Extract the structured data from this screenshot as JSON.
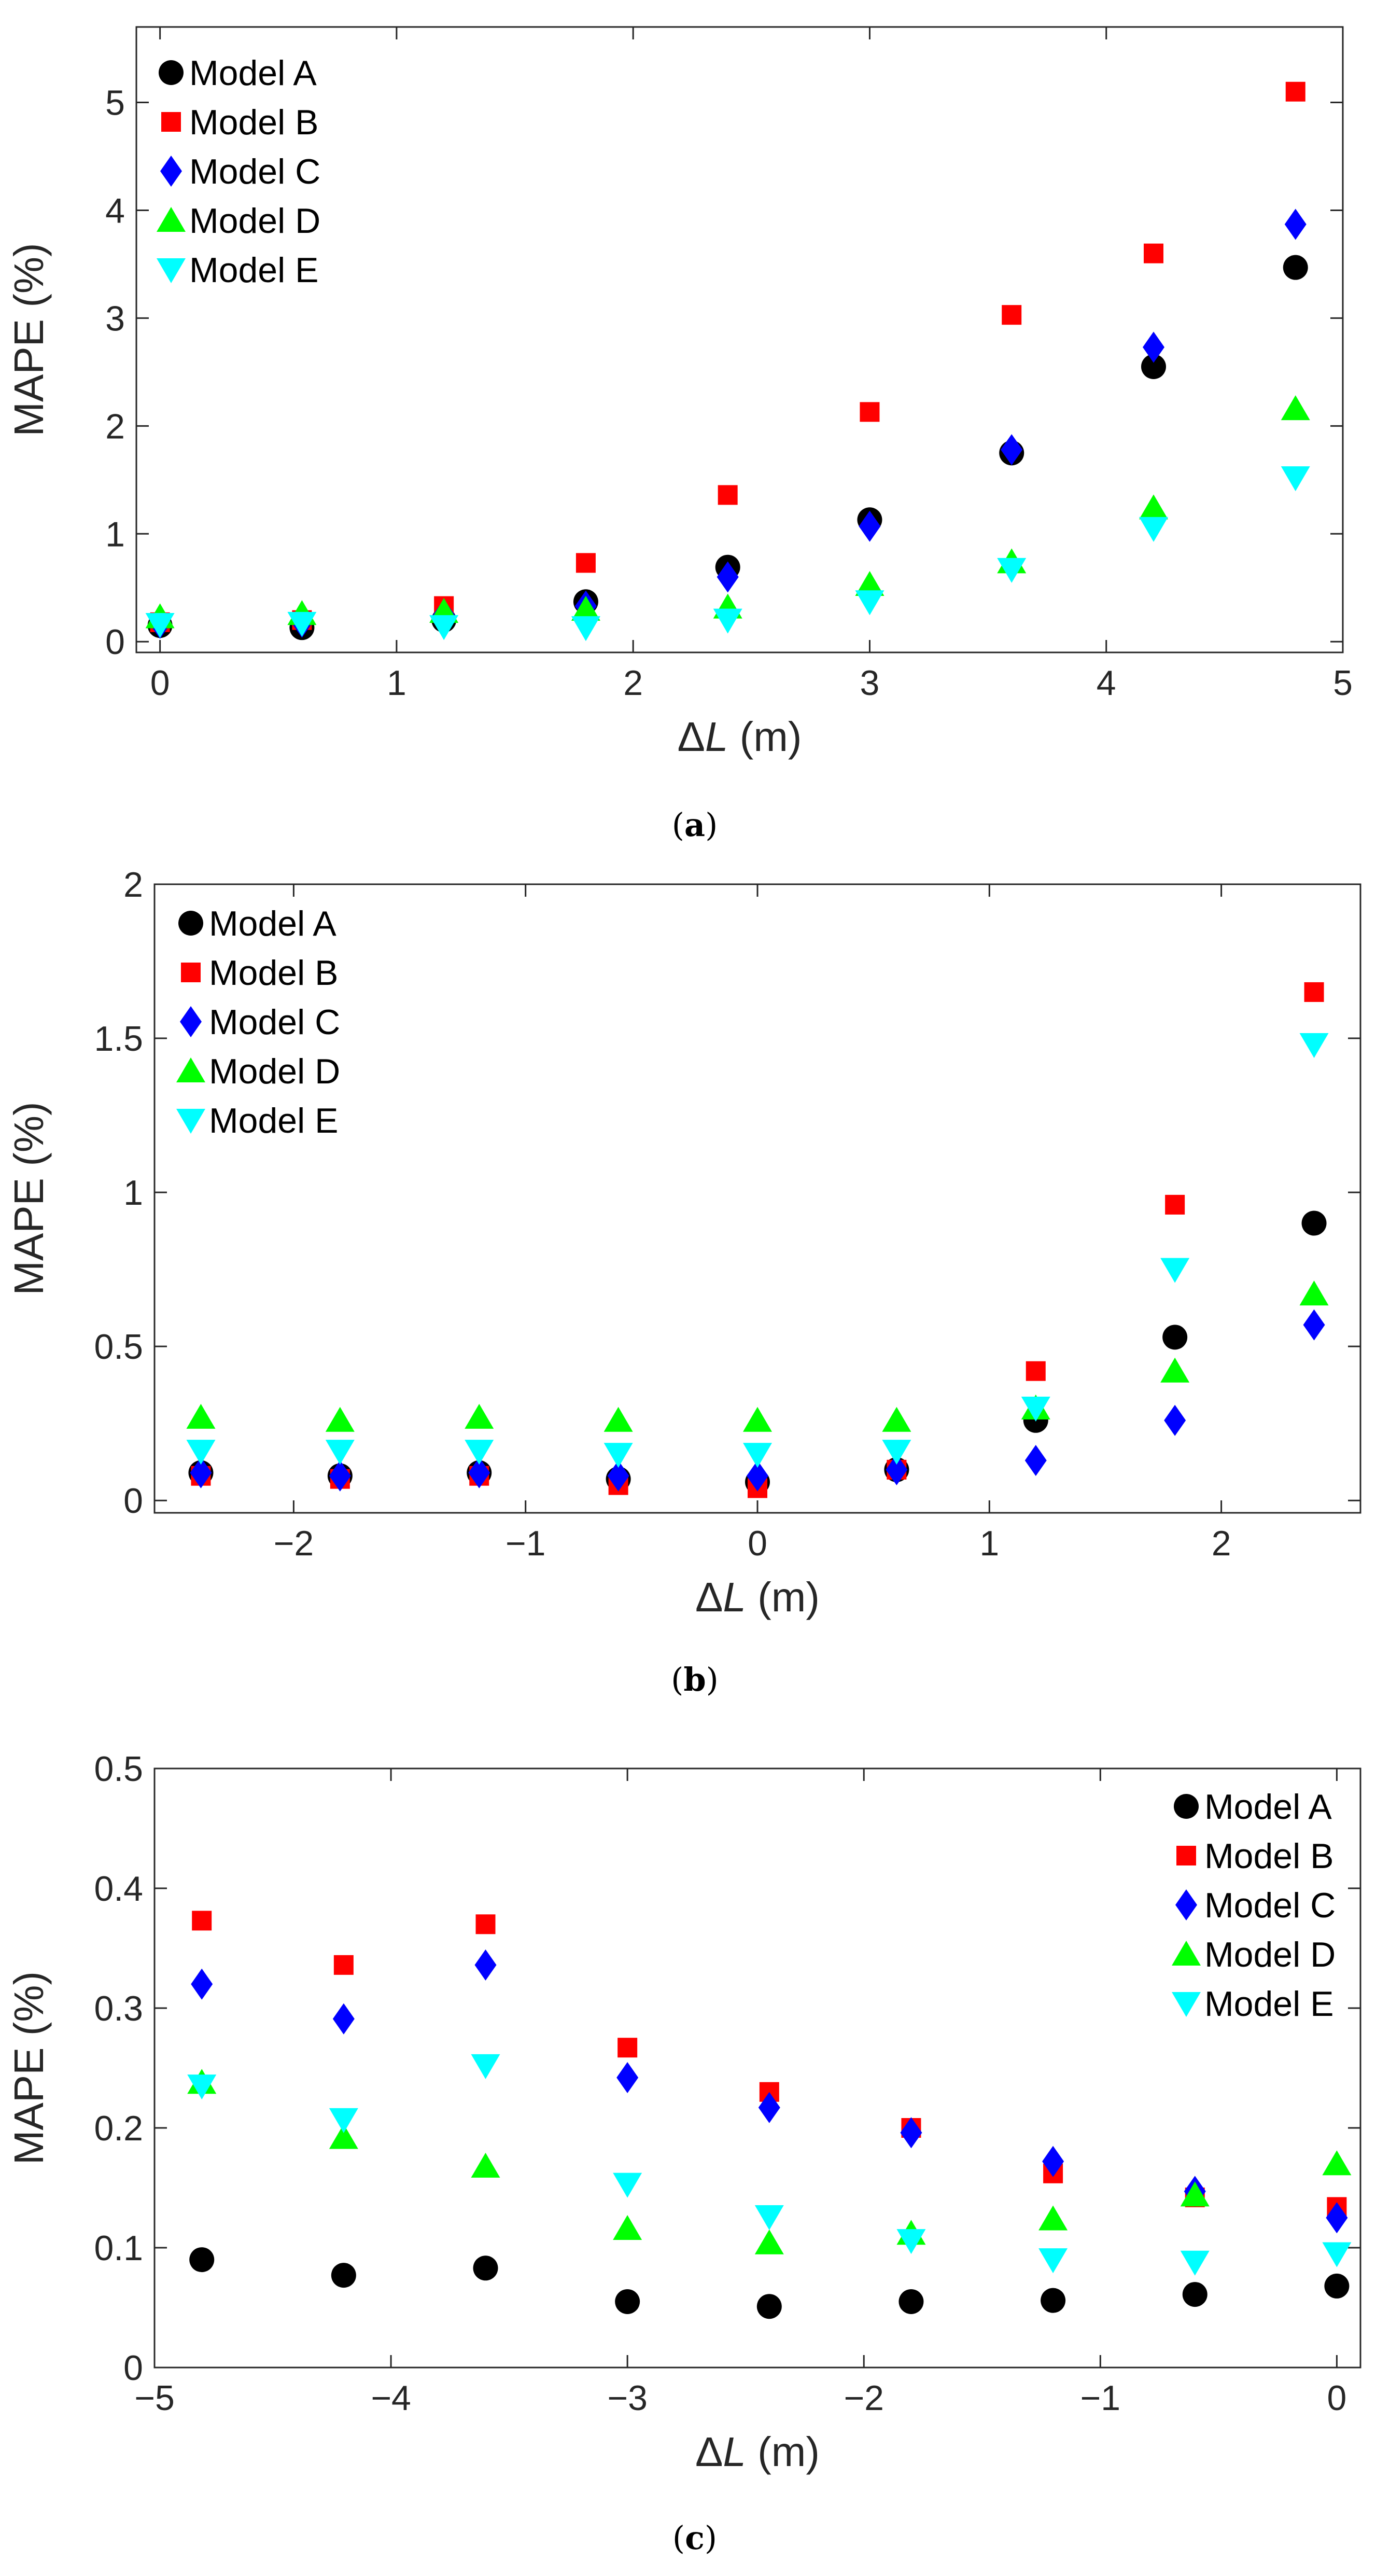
{
  "colors": {
    "model_a": "#000000",
    "model_b": "#ff0000",
    "model_c": "#0000ff",
    "model_d": "#00ff00",
    "model_e": "#00ffff"
  },
  "chart_data": [
    {
      "type": "scatter",
      "caption": "(a)",
      "xlabel": "ΔL (m)",
      "ylabel": "MAPE (%)",
      "xlim": [
        -0.1,
        5
      ],
      "ylim": [
        -0.1,
        5.7
      ],
      "xticks": [
        0,
        1,
        2,
        3,
        4,
        5
      ],
      "yticks": [
        0,
        1,
        2,
        3,
        4,
        5
      ],
      "xtick_labels": [
        "0",
        "1",
        "2",
        "3",
        "4",
        "5"
      ],
      "ytick_labels": [
        "0",
        "1",
        "2",
        "3",
        "4",
        "5"
      ],
      "legend_position": "top-left",
      "x": [
        0,
        0.6,
        1.2,
        1.8,
        2.4,
        3.0,
        3.6,
        4.2,
        4.8
      ],
      "series": [
        {
          "name": "Model A",
          "marker": "circle",
          "values": [
            0.15,
            0.13,
            0.2,
            0.37,
            0.69,
            1.13,
            1.75,
            2.55,
            3.47
          ]
        },
        {
          "name": "Model B",
          "marker": "square",
          "values": [
            0.18,
            0.2,
            0.33,
            0.73,
            1.36,
            2.13,
            3.03,
            3.6,
            5.1
          ]
        },
        {
          "name": "Model C",
          "marker": "diamond",
          "values": [
            0.17,
            0.18,
            0.25,
            0.33,
            0.6,
            1.07,
            1.78,
            2.73,
            3.87
          ]
        },
        {
          "name": "Model D",
          "marker": "triangle-up",
          "values": [
            0.23,
            0.26,
            0.28,
            0.3,
            0.32,
            0.53,
            0.74,
            1.24,
            2.16
          ]
        },
        {
          "name": "Model E",
          "marker": "triangle-down",
          "values": [
            0.16,
            0.17,
            0.14,
            0.13,
            0.2,
            0.37,
            0.67,
            1.05,
            1.52
          ]
        }
      ]
    },
    {
      "type": "scatter",
      "caption": "(b)",
      "xlabel": "ΔL (m)",
      "ylabel": "MAPE (%)",
      "xlim": [
        -2.6,
        2.6
      ],
      "ylim": [
        -0.04,
        2
      ],
      "xticks": [
        -2,
        -1,
        0,
        1,
        2
      ],
      "yticks": [
        0,
        0.5,
        1,
        1.5,
        2
      ],
      "xtick_labels": [
        "−2",
        "−1",
        "0",
        "1",
        "2"
      ],
      "ytick_labels": [
        "0",
        "0.5",
        "1",
        "1.5",
        "2"
      ],
      "legend_position": "top-left",
      "x": [
        -2.4,
        -1.8,
        -1.2,
        -0.6,
        0,
        0.6,
        1.2,
        1.8,
        2.4
      ],
      "series": [
        {
          "name": "Model A",
          "marker": "circle",
          "values": [
            0.09,
            0.08,
            0.09,
            0.07,
            0.06,
            0.1,
            0.26,
            0.53,
            0.9
          ]
        },
        {
          "name": "Model B",
          "marker": "square",
          "values": [
            0.08,
            0.07,
            0.08,
            0.05,
            0.04,
            0.1,
            0.42,
            0.96,
            1.65
          ]
        },
        {
          "name": "Model C",
          "marker": "diamond",
          "values": [
            0.09,
            0.08,
            0.09,
            0.08,
            0.08,
            0.1,
            0.13,
            0.26,
            0.57
          ]
        },
        {
          "name": "Model D",
          "marker": "triangle-up",
          "values": [
            0.27,
            0.26,
            0.27,
            0.26,
            0.26,
            0.26,
            0.3,
            0.42,
            0.67
          ]
        },
        {
          "name": "Model E",
          "marker": "triangle-down",
          "values": [
            0.16,
            0.16,
            0.16,
            0.15,
            0.15,
            0.16,
            0.3,
            0.75,
            1.48
          ]
        }
      ]
    },
    {
      "type": "scatter",
      "caption": "(c)",
      "xlabel": "ΔL (m)",
      "ylabel": "MAPE (%)",
      "xlim": [
        -5,
        0.1
      ],
      "ylim": [
        0,
        0.5
      ],
      "xticks": [
        -5,
        -4,
        -3,
        -2,
        -1,
        0
      ],
      "yticks": [
        0,
        0.1,
        0.2,
        0.3,
        0.4,
        0.5
      ],
      "xtick_labels": [
        "−5",
        "−4",
        "−3",
        "−2",
        "−1",
        "0"
      ],
      "ytick_labels": [
        "0",
        "0.1",
        "0.2",
        "0.3",
        "0.4",
        "0.5"
      ],
      "legend_position": "top-right",
      "x": [
        -4.8,
        -4.2,
        -3.6,
        -3.0,
        -2.4,
        -1.8,
        -1.2,
        -0.6,
        0
      ],
      "series": [
        {
          "name": "Model A",
          "marker": "circle",
          "values": [
            0.09,
            0.077,
            0.083,
            0.055,
            0.051,
            0.055,
            0.056,
            0.061,
            0.068
          ]
        },
        {
          "name": "Model B",
          "marker": "square",
          "values": [
            0.373,
            0.336,
            0.37,
            0.267,
            0.23,
            0.2,
            0.162,
            0.142,
            0.134
          ]
        },
        {
          "name": "Model C",
          "marker": "diamond",
          "values": [
            0.32,
            0.291,
            0.336,
            0.242,
            0.217,
            0.196,
            0.172,
            0.147,
            0.125
          ]
        },
        {
          "name": "Model D",
          "marker": "triangle-up",
          "values": [
            0.238,
            0.192,
            0.168,
            0.116,
            0.104,
            0.112,
            0.124,
            0.144,
            0.17
          ]
        },
        {
          "name": "Model E",
          "marker": "triangle-down",
          "values": [
            0.235,
            0.207,
            0.252,
            0.153,
            0.126,
            0.106,
            0.09,
            0.088,
            0.095
          ]
        }
      ]
    }
  ]
}
